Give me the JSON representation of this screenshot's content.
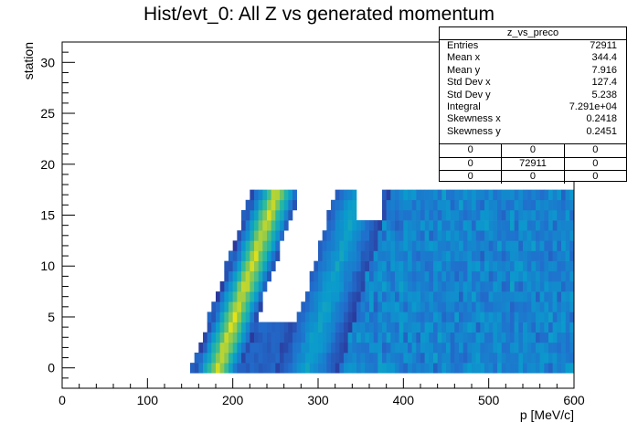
{
  "chart_data": {
    "type": "heatmap",
    "title": "Hist/evt_0: All Z vs generated momentum",
    "xlabel": "p [MeV/c]",
    "ylabel": "station",
    "xlim": [
      0,
      600
    ],
    "ylim": [
      -2,
      32
    ],
    "x_ticks": [
      "0",
      "100",
      "200",
      "300",
      "400",
      "500",
      "600"
    ],
    "y_ticks": [
      "0",
      "5",
      "10",
      "15",
      "20",
      "25",
      "30"
    ],
    "x_tick_values": [
      0,
      100,
      200,
      300,
      400,
      500,
      600
    ],
    "y_tick_values": [
      0,
      5,
      10,
      15,
      20,
      25,
      30
    ],
    "x_bin_width": 5,
    "y_bins": [
      -0.5,
      17.5
    ],
    "bands": [
      {
        "name": "low",
        "p_at_station0": 180,
        "p_at_station17": 248,
        "halfwidth": 22
      },
      {
        "name": "high",
        "p_at_station0": 285,
        "p_at_station17": 345,
        "halfwidth": 38
      }
    ],
    "grid": false,
    "legend": "none"
  },
  "stats": {
    "name": "z_vs_preco",
    "rows": [
      {
        "label": "Entries",
        "value": "72911"
      },
      {
        "label": "Mean x",
        "value": "344.4"
      },
      {
        "label": "Mean y",
        "value": "7.916"
      },
      {
        "label": "Std Dev x",
        "value": "127.4"
      },
      {
        "label": "Std Dev y",
        "value": "5.238"
      },
      {
        "label": "Integral",
        "value": "7.291e+04"
      },
      {
        "label": "Skewness x",
        "value": "0.2418"
      },
      {
        "label": "Skewness y",
        "value": "0.2451"
      }
    ],
    "overflow_grid": [
      [
        "0",
        "0",
        "0"
      ],
      [
        "0",
        "72911",
        "0"
      ],
      [
        "0",
        "0",
        "0"
      ]
    ]
  },
  "colors": {
    "low": "#2b3fa8",
    "mid": "#0ca8c8",
    "high": "#f5e60c"
  }
}
